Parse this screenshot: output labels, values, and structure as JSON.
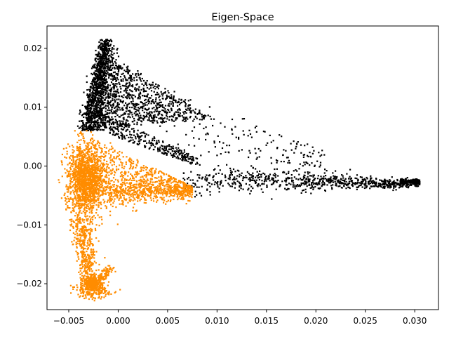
{
  "chart_data": {
    "type": "scatter",
    "title": "Eigen-Space",
    "xlabel": "",
    "ylabel": "",
    "xlim": [
      -0.0072,
      0.0324
    ],
    "ylim": [
      -0.0244,
      0.0238
    ],
    "xticks": [
      -0.005,
      0.0,
      0.005,
      0.01,
      0.015,
      0.02,
      0.025,
      0.03
    ],
    "xtick_labels": [
      "−0.005",
      "0.000",
      "0.005",
      "0.010",
      "0.015",
      "0.020",
      "0.025",
      "0.030"
    ],
    "yticks": [
      -0.02,
      -0.01,
      0.0,
      0.01,
      0.02
    ],
    "ytick_labels": [
      "−0.02",
      "−0.01",
      "0.00",
      "0.01",
      "0.02"
    ],
    "grid": false,
    "legend": "none",
    "series": [
      {
        "color": "#000000",
        "point_count_approx": 2600,
        "points_description_values": [
          [
            -0.002,
            0.0215
          ],
          [
            -0.0025,
            0.019
          ],
          [
            -0.003,
            0.015
          ],
          [
            -0.0035,
            0.011
          ],
          [
            -0.0038,
            0.008
          ],
          [
            0.0,
            0.019
          ],
          [
            0.003,
            0.017
          ],
          [
            0.006,
            0.013
          ],
          [
            0.009,
            0.01
          ],
          [
            0.011,
            0.008
          ],
          [
            0.002,
            0.006
          ],
          [
            0.005,
            0.003
          ],
          [
            0.008,
            -0.001
          ],
          [
            0.01,
            -0.0025
          ],
          [
            0.015,
            -0.002
          ],
          [
            0.02,
            -0.0015
          ],
          [
            0.025,
            -0.002
          ],
          [
            0.028,
            -0.0025
          ],
          [
            0.0303,
            -0.0026
          ]
        ]
      },
      {
        "color": "#ff8c00",
        "point_count_approx": 3400,
        "points_description_values": [
          [
            -0.0038,
            0.006
          ],
          [
            -0.005,
            0.0
          ],
          [
            -0.0055,
            -0.004
          ],
          [
            -0.004,
            -0.01
          ],
          [
            -0.003,
            -0.015
          ],
          [
            -0.003,
            -0.02
          ],
          [
            -0.002,
            -0.022
          ],
          [
            -0.0005,
            -0.016
          ],
          [
            0.0,
            0.002
          ],
          [
            0.003,
            -0.001
          ],
          [
            0.006,
            -0.004
          ],
          [
            0.0075,
            -0.0045
          ]
        ]
      }
    ]
  }
}
